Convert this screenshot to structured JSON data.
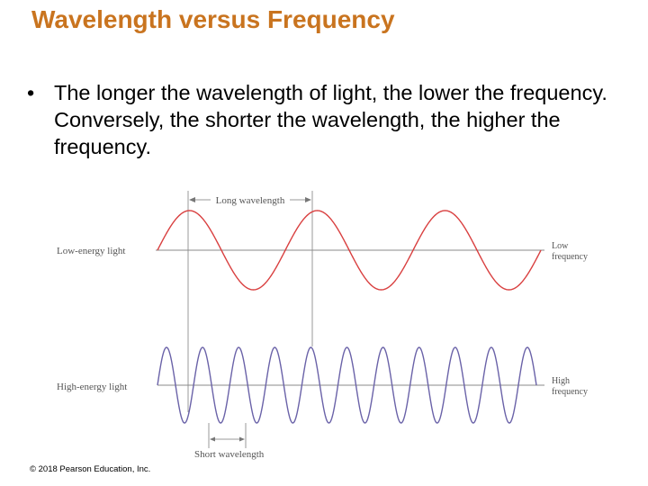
{
  "slide": {
    "title": "Wavelength versus Frequency",
    "bullet_marker": "•",
    "bullet": "The longer the wavelength of light, the lower the frequency. Conversely, the shorter the wavelength, the higher the frequency.",
    "copyright": "© 2018 Pearson Education, Inc."
  },
  "diagram": {
    "long_wavelength_label": "Long wavelength",
    "short_wavelength_label": "Short wavelength",
    "low_energy": {
      "label": "Low-energy light",
      "freq_line1": "Low",
      "freq_line2": "frequency",
      "color": "#d94040",
      "cycles": 3
    },
    "high_energy": {
      "label": "High-energy light",
      "freq_line1": "High",
      "freq_line2": "frequency",
      "color": "#6a62a8",
      "cycles": 10.5
    },
    "axis_color": "#8a8a8a"
  }
}
